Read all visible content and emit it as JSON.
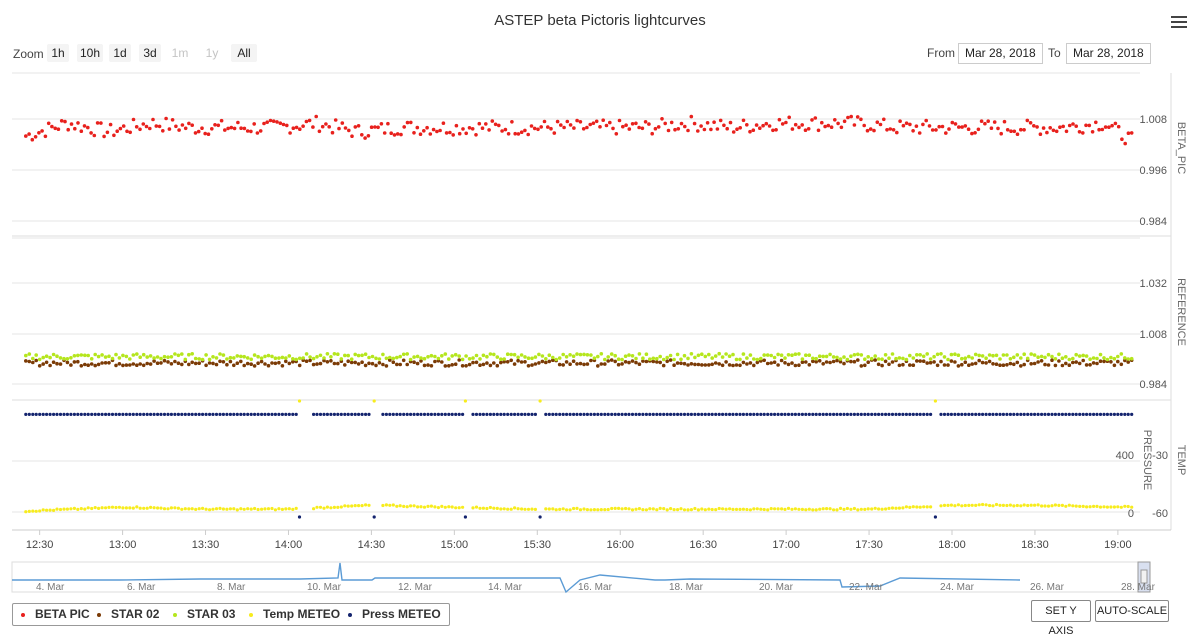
{
  "chart_title": "ASTEP beta Pictoris lightcurves",
  "zoom": {
    "label": "Zoom",
    "buttons": [
      {
        "label": "1h",
        "enabled": true
      },
      {
        "label": "10h",
        "enabled": true
      },
      {
        "label": "1d",
        "enabled": true
      },
      {
        "label": "3d",
        "enabled": true
      },
      {
        "label": "1m",
        "enabled": false
      },
      {
        "label": "1y",
        "enabled": false
      },
      {
        "label": "All",
        "enabled": true
      }
    ]
  },
  "range": {
    "from_label": "From",
    "from_value": "Mar 28, 2018",
    "to_label": "To",
    "to_value": "Mar 28, 2018"
  },
  "legend": [
    {
      "name": "BETA PIC",
      "color": "#e8211d"
    },
    {
      "name": "STAR 02",
      "color": "#7b3b06"
    },
    {
      "name": "STAR 03",
      "color": "#b5e61d"
    },
    {
      "name": "Temp METEO",
      "color": "#f7ec1d"
    },
    {
      "name": "Press METEO",
      "color": "#14246e"
    }
  ],
  "buttons": {
    "set_y_axis": "SET Y AXIS",
    "auto_scale": "AUTO-SCALE"
  },
  "navigator": {
    "labels": [
      "4. Mar",
      "6. Mar",
      "8. Mar",
      "10. Mar",
      "12. Mar",
      "14. Mar",
      "16. Mar",
      "18. Mar",
      "20. Mar",
      "22. Mar",
      "24. Mar",
      "26. Mar",
      "28. Mar"
    ],
    "line_color": "#5b9bd5"
  },
  "chart_data": {
    "type": "scatter",
    "x_axis": {
      "ticks": [
        "12:30",
        "13:00",
        "13:30",
        "14:00",
        "14:30",
        "15:00",
        "15:30",
        "16:00",
        "16:30",
        "17:00",
        "17:30",
        "18:00",
        "18:30",
        "19:00"
      ]
    },
    "panels": [
      {
        "axis_title": "BETA_PIC",
        "y_ticks": [
          "1.008",
          "0.996",
          "0.984"
        ],
        "ylim": [
          0.984,
          1.008
        ],
        "series": [
          {
            "name": "BETA PIC",
            "color": "#e8211d",
            "x": [
              "12:25",
              "12:40",
              "12:55",
              "13:10",
              "13:25",
              "13:40",
              "13:55",
              "14:10",
              "14:25",
              "14:40",
              "14:55",
              "15:10",
              "15:25",
              "15:40",
              "15:55",
              "16:10",
              "16:25",
              "16:40",
              "16:55",
              "17:10",
              "17:25",
              "17:40",
              "17:55",
              "18:10",
              "18:25",
              "18:40",
              "18:55",
              "19:05"
            ],
            "y": [
              1.004,
              1.007,
              1.005,
              1.007,
              1.006,
              1.006,
              1.006,
              1.007,
              1.005,
              1.006,
              1.006,
              1.006,
              1.006,
              1.006,
              1.006,
              1.006,
              1.007,
              1.006,
              1.007,
              1.007,
              1.007,
              1.006,
              1.006,
              1.006,
              1.006,
              1.006,
              1.007,
              1.003
            ]
          }
        ]
      },
      {
        "axis_title": "REFERENCE",
        "y_ticks": [
          "1.032",
          "1.008",
          "0.984"
        ],
        "ylim": [
          0.984,
          1.032
        ],
        "series": [
          {
            "name": "STAR 02",
            "color": "#7b3b06",
            "x": [
              "12:25",
              "13:00",
              "13:30",
              "14:00",
              "14:30",
              "15:00",
              "15:30",
              "16:00",
              "16:30",
              "17:00",
              "17:30",
              "18:00",
              "18:30",
              "19:05"
            ],
            "y": [
              0.994,
              0.994,
              0.994,
              0.994,
              0.994,
              0.994,
              0.994,
              0.994,
              0.994,
              0.994,
              0.994,
              0.994,
              0.994,
              0.994
            ]
          },
          {
            "name": "STAR 03",
            "color": "#b5e61d",
            "x": [
              "12:25",
              "13:00",
              "13:30",
              "14:00",
              "14:30",
              "15:00",
              "15:30",
              "16:00",
              "16:30",
              "17:00",
              "17:30",
              "18:00",
              "18:30",
              "19:05"
            ],
            "y": [
              0.997,
              0.997,
              0.997,
              0.997,
              0.997,
              0.997,
              0.997,
              0.997,
              0.997,
              0.997,
              0.997,
              0.997,
              0.997,
              0.997
            ]
          }
        ]
      },
      {
        "axis_title_right": "TEMP",
        "axis_title_left": "PRESSURE",
        "y_ticks_pressure": [
          "400",
          "0"
        ],
        "y_ticks_temp": [
          "-30",
          "-60"
        ],
        "series": [
          {
            "name": "Temp METEO",
            "color": "#f7ec1d",
            "x": [
              "12:25",
              "13:00",
              "13:30",
              "14:00",
              "14:30",
              "15:00",
              "15:30",
              "16:00",
              "16:30",
              "17:00",
              "17:30",
              "18:00",
              "18:30",
              "19:05"
            ],
            "y": [
              -59,
              -57,
              -58,
              -58,
              -56,
              -57,
              -58,
              -58,
              -58,
              -58,
              -58,
              -56,
              -56,
              -57
            ]
          },
          {
            "name": "Press METEO",
            "color": "#14246e",
            "x": [
              "12:25",
              "13:00",
              "13:30",
              "14:00",
              "14:30",
              "15:00",
              "15:30",
              "16:00",
              "16:30",
              "17:00",
              "17:30",
              "18:00",
              "18:30",
              "19:05"
            ],
            "y": [
              680,
              680,
              680,
              680,
              680,
              680,
              680,
              680,
              680,
              680,
              680,
              680,
              680,
              680
            ]
          }
        ]
      }
    ]
  }
}
